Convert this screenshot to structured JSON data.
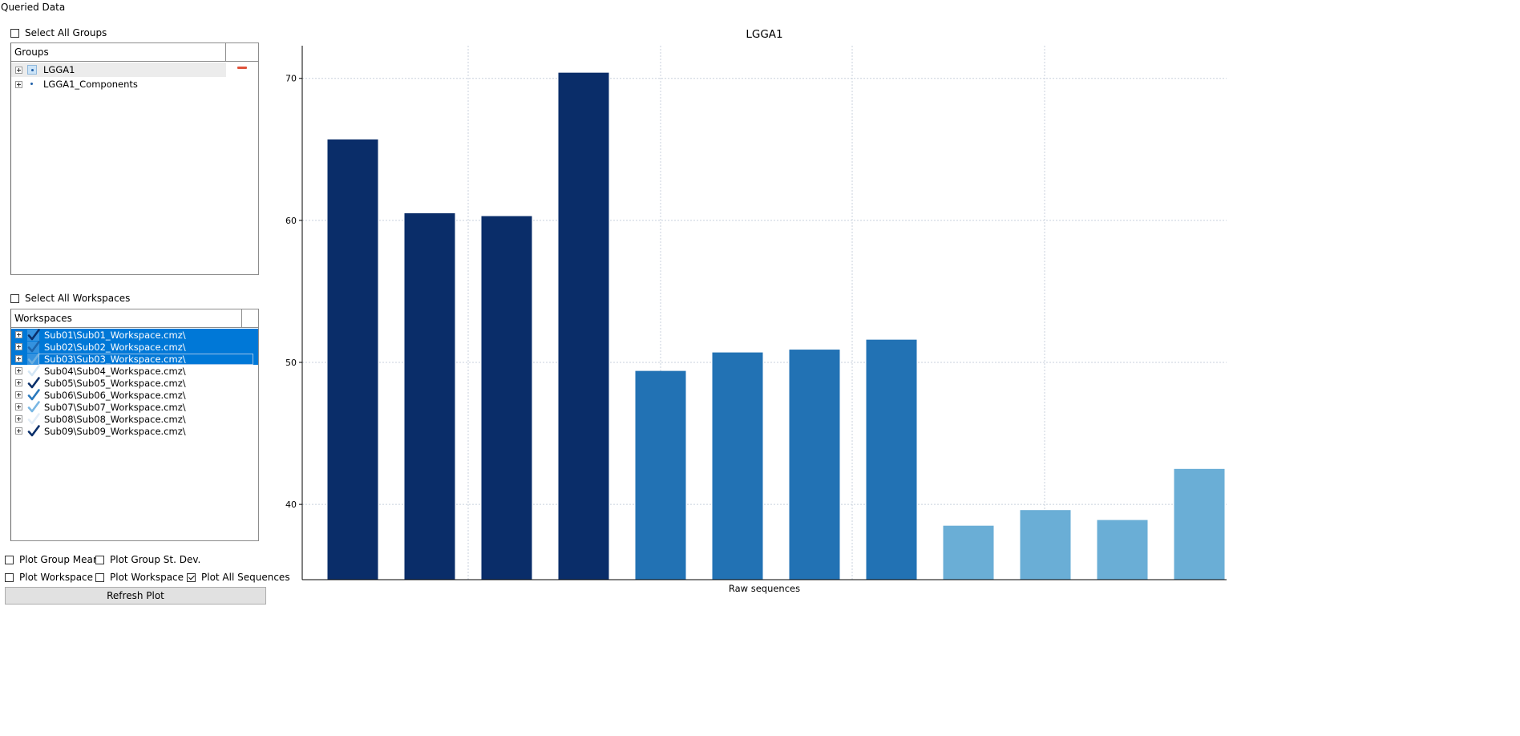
{
  "window": {
    "title": "Queried Data"
  },
  "groups_panel": {
    "select_all_label": "Select All Groups",
    "select_all_checked": false,
    "header": "Groups",
    "items": [
      {
        "label": "LGGA1",
        "highlighted": true,
        "removable": true
      },
      {
        "label": "LGGA1_Components",
        "highlighted": false,
        "removable": false
      }
    ]
  },
  "workspaces_panel": {
    "select_all_label": "Select All Workspaces",
    "select_all_checked": false,
    "header": "Workspaces",
    "items": [
      {
        "label": "Sub01\\Sub01_Workspace.cmz\\",
        "selected": true,
        "check_color": "#0b306b"
      },
      {
        "label": "Sub02\\Sub02_Workspace.cmz\\",
        "selected": true,
        "check_color": "#1c65ad"
      },
      {
        "label": "Sub03\\Sub03_Workspace.cmz\\",
        "selected": true,
        "check_color": "#6aaee0"
      },
      {
        "label": "Sub04\\Sub04_Workspace.cmz\\",
        "selected": false,
        "check_color": "#d3e6f5"
      },
      {
        "label": "Sub05\\Sub05_Workspace.cmz\\",
        "selected": false,
        "check_color": "#0b306b"
      },
      {
        "label": "Sub06\\Sub06_Workspace.cmz\\",
        "selected": false,
        "check_color": "#2a79bd"
      },
      {
        "label": "Sub07\\Sub07_Workspace.cmz\\",
        "selected": false,
        "check_color": "#79b7e3"
      },
      {
        "label": "Sub08\\Sub08_Workspace.cmz\\",
        "selected": false,
        "check_color": "#e3eef8"
      },
      {
        "label": "Sub09\\Sub09_Workspace.cmz\\",
        "selected": false,
        "check_color": "#0b306b"
      }
    ]
  },
  "options": {
    "plot_group_mean": {
      "label": "Plot Group Mean",
      "checked": false
    },
    "plot_group_std": {
      "label": "Plot Group St. Dev.",
      "checked": false
    },
    "plot_workspace_mean": {
      "label": "Plot Workspace Mear",
      "checked": false
    },
    "plot_workspace_std": {
      "label": "Plot Workspace St. De",
      "checked": false
    },
    "plot_all_sequences": {
      "label": "Plot All Sequences",
      "checked": true
    },
    "refresh_label": "Refresh Plot"
  },
  "chart_data": {
    "type": "bar",
    "title": "LGGA1",
    "xlabel": "Raw sequences",
    "ylabel": "",
    "ylim": [
      34.7,
      72.3
    ],
    "yticks": [
      40,
      50,
      60,
      70
    ],
    "grid": true,
    "values": [
      65.7,
      60.5,
      60.3,
      70.4,
      49.4,
      50.7,
      50.9,
      51.6,
      38.5,
      39.6,
      38.9,
      42.5
    ],
    "colors": [
      "#0a2d69",
      "#0a2d69",
      "#0a2d69",
      "#0a2d69",
      "#2272b4",
      "#2272b4",
      "#2272b4",
      "#2272b4",
      "#6aaed6",
      "#6aaed6",
      "#6aaed6",
      "#6aaed6"
    ],
    "grid_color": "#c8d0dc"
  }
}
